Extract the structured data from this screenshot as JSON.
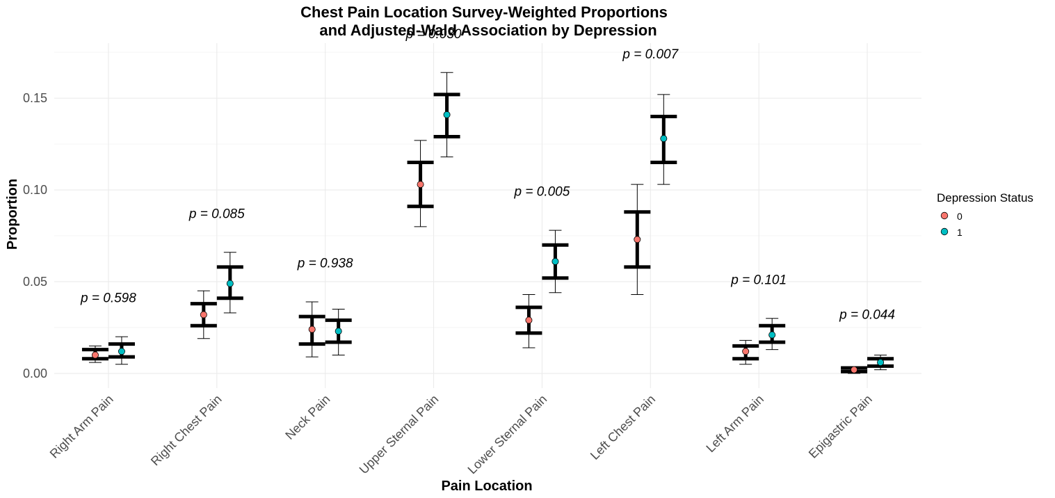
{
  "chart_data": {
    "type": "scatter",
    "title_lines": [
      "Chest Pain Location Survey-Weighted Proportions",
      "and Adjusted-Wald Association by Depression"
    ],
    "xlabel": "Pain Location",
    "ylabel": "Proportion",
    "categories": [
      "Right Arm Pain",
      "Right Chest Pain",
      "Neck Pain",
      "Upper Sternal Pain",
      "Lower Sternal Pain",
      "Left Chest Pain",
      "Left Arm Pain",
      "Epigastric Pain"
    ],
    "ylim": [
      -0.008,
      0.18
    ],
    "yticks": [
      0.0,
      0.05,
      0.1,
      0.15
    ],
    "ytick_labels": [
      "0.00",
      "0.05",
      "0.10",
      "0.15"
    ],
    "legend": {
      "title": "Depression Status",
      "position": "right",
      "entries": [
        {
          "label": "0",
          "color": "#F8766D"
        },
        {
          "label": "1",
          "color": "#00BFC4"
        }
      ]
    },
    "series": [
      {
        "name": "0",
        "color": "#F8766D",
        "values": [
          0.01,
          0.032,
          0.024,
          0.103,
          0.029,
          0.073,
          0.012,
          0.002
        ],
        "ci_lower": [
          0.006,
          0.019,
          0.009,
          0.08,
          0.014,
          0.043,
          0.005,
          0.0
        ],
        "ci_upper": [
          0.015,
          0.045,
          0.039,
          0.127,
          0.043,
          0.103,
          0.018,
          0.003
        ],
        "se_lower": [
          0.008,
          0.026,
          0.016,
          0.091,
          0.022,
          0.058,
          0.008,
          0.001
        ],
        "se_upper": [
          0.013,
          0.038,
          0.031,
          0.115,
          0.036,
          0.088,
          0.015,
          0.003
        ]
      },
      {
        "name": "1",
        "color": "#00BFC4",
        "values": [
          0.012,
          0.049,
          0.023,
          0.141,
          0.061,
          0.128,
          0.021,
          0.006
        ],
        "ci_lower": [
          0.005,
          0.033,
          0.01,
          0.118,
          0.044,
          0.103,
          0.013,
          0.002
        ],
        "ci_upper": [
          0.02,
          0.066,
          0.035,
          0.164,
          0.078,
          0.152,
          0.03,
          0.01
        ],
        "se_lower": [
          0.009,
          0.041,
          0.017,
          0.129,
          0.052,
          0.115,
          0.017,
          0.004
        ],
        "se_upper": [
          0.016,
          0.058,
          0.029,
          0.152,
          0.07,
          0.14,
          0.026,
          0.008
        ]
      }
    ],
    "annotations": [
      {
        "category": "Right Arm Pain",
        "text": "p = 0.598",
        "y": 0.041
      },
      {
        "category": "Right Chest Pain",
        "text": "p = 0.085",
        "y": 0.087
      },
      {
        "category": "Neck Pain",
        "text": "p = 0.938",
        "y": 0.06
      },
      {
        "category": "Upper Sternal Pain",
        "text": "p = 0.030",
        "y": 0.185
      },
      {
        "category": "Lower Sternal Pain",
        "text": "p = 0.005",
        "y": 0.099
      },
      {
        "category": "Left Chest Pain",
        "text": "p = 0.007",
        "y": 0.174
      },
      {
        "category": "Left Arm Pain",
        "text": "p = 0.101",
        "y": 0.051
      },
      {
        "category": "Epigastric Pain",
        "text": "p = 0.044",
        "y": 0.032
      }
    ],
    "grid": true
  }
}
